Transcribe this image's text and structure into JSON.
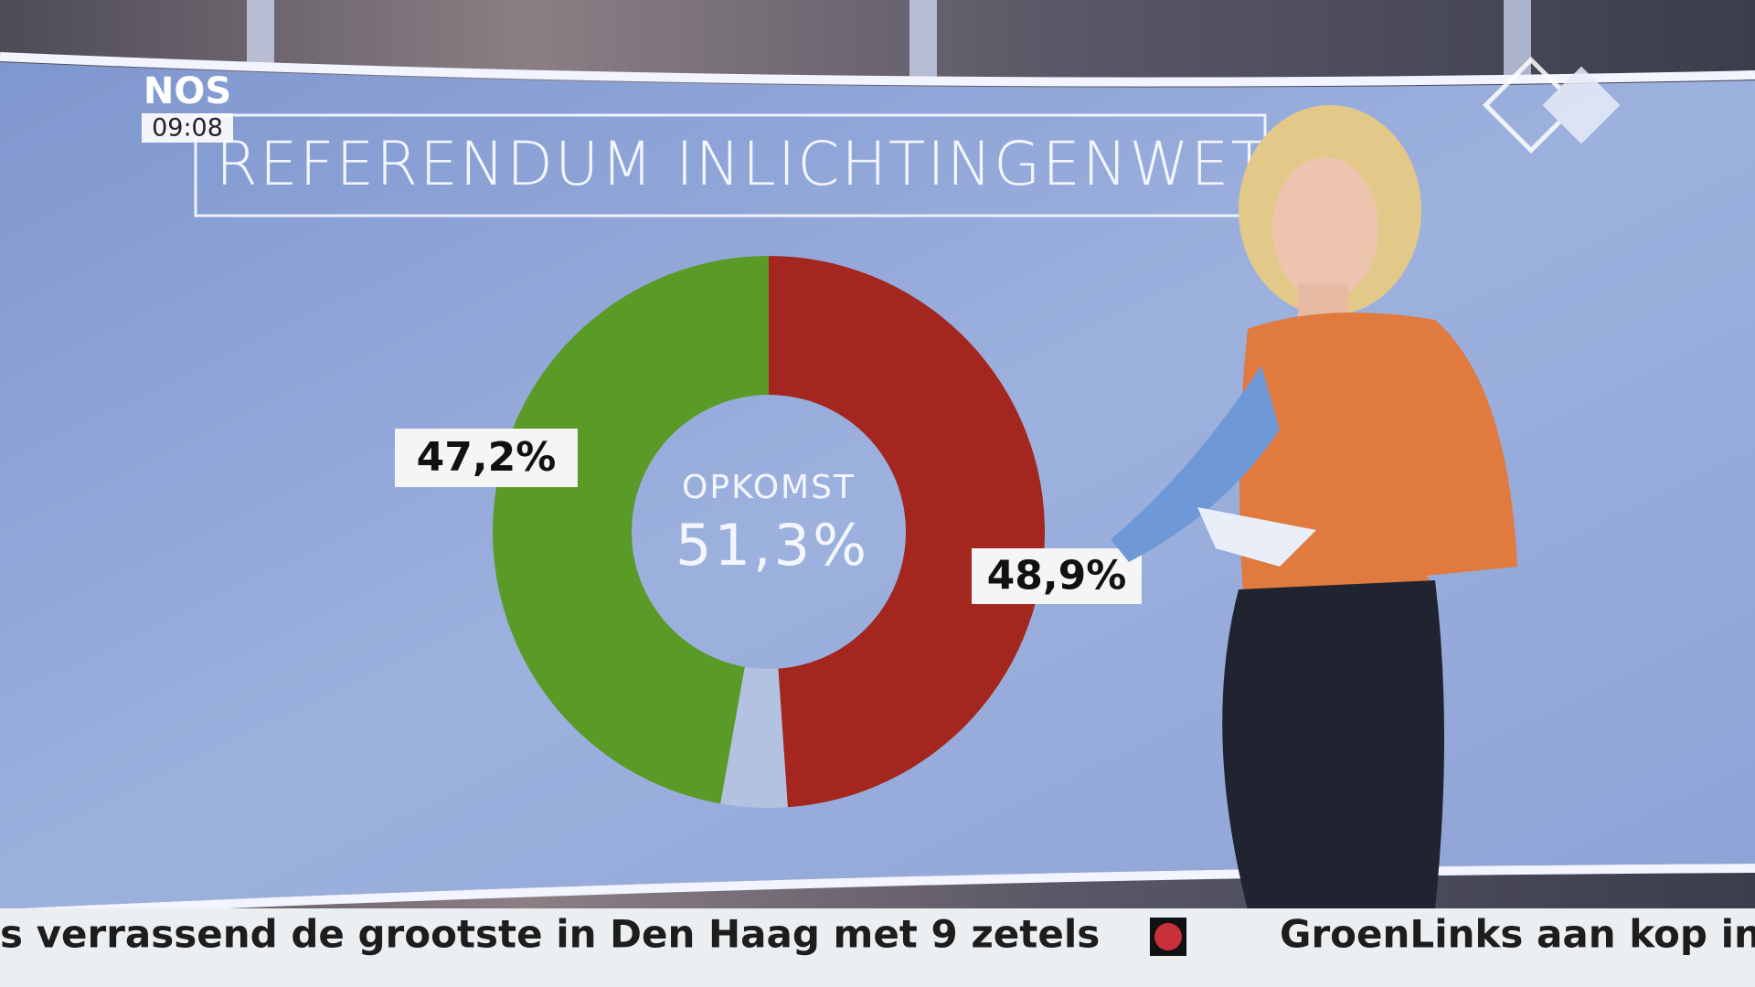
{
  "broadcaster": "NOS",
  "clock": "09:08",
  "chart_data": {
    "type": "donut",
    "title": "REFERENDUM INLICHTINGENWET",
    "values": [
      48.9,
      3.9,
      47.2
    ],
    "value_labels": [
      "48,9%",
      null,
      "47,2%"
    ],
    "colors": [
      "#a3271f",
      "#b4c2e2",
      "#5a9a26"
    ],
    "center_title": "OPKOMST",
    "center_value": "51,3%"
  },
  "ticker": [
    "s verrassend de grootste in Den Haag met 9 zetels",
    "GroenLinks aan kop in"
  ]
}
